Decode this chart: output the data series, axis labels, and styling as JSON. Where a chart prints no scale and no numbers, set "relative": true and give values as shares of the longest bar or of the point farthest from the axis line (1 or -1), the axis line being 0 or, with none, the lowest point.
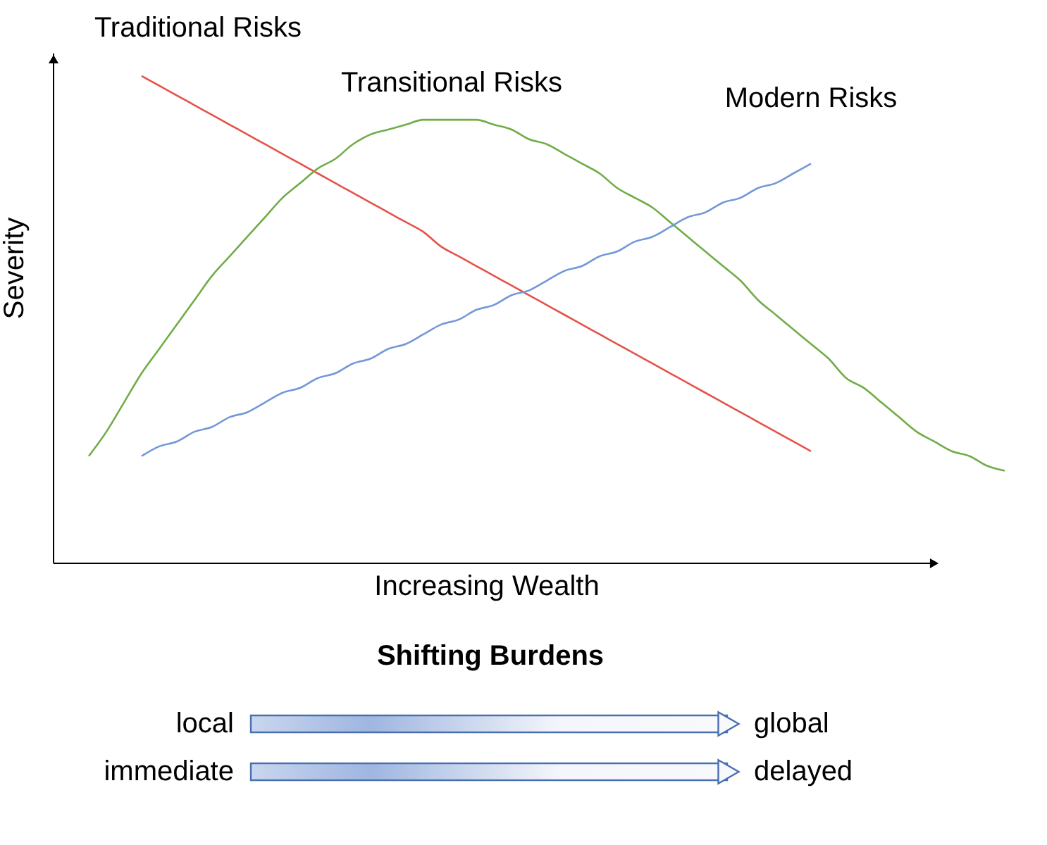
{
  "chart_data": {
    "type": "line",
    "relative": true,
    "xlabel": "Increasing Wealth",
    "ylabel": "Severity",
    "categories": [
      null,
      null,
      null,
      null,
      null,
      null,
      null,
      null,
      null,
      null,
      null,
      null,
      null,
      null,
      null,
      null,
      null,
      null,
      null,
      null,
      null,
      null,
      null,
      null,
      null,
      null,
      null,
      null,
      null,
      null,
      null,
      null,
      null,
      null,
      null,
      null,
      null,
      null,
      null,
      null,
      null,
      null,
      null,
      null,
      null,
      null,
      null,
      null,
      null,
      null,
      null,
      null,
      null
    ],
    "series": [
      {
        "name": "Traditional Risks",
        "color": "#e5524a",
        "values": [
          null,
          null,
          null,
          1.0,
          0.98,
          0.96,
          0.94,
          0.92,
          0.9,
          0.88,
          0.86,
          0.84,
          0.82,
          0.8,
          0.78,
          0.76,
          0.74,
          0.72,
          0.7,
          0.68,
          0.65,
          0.63,
          0.61,
          0.59,
          0.57,
          0.55,
          0.53,
          0.51,
          0.49,
          0.47,
          0.45,
          0.43,
          0.41,
          0.39,
          0.37,
          0.35,
          0.33,
          0.31,
          0.29,
          0.27,
          0.25,
          0.23,
          null,
          null,
          null,
          null,
          null,
          null,
          null,
          null,
          null,
          null,
          null
        ]
      },
      {
        "name": "Transitional Risks",
        "color": "#70ad47",
        "values": [
          0.22,
          0.27,
          0.33,
          0.39,
          0.44,
          0.49,
          0.54,
          0.59,
          0.63,
          0.67,
          0.71,
          0.75,
          0.78,
          0.81,
          0.83,
          0.86,
          0.88,
          0.89,
          0.9,
          0.91,
          0.91,
          0.91,
          0.91,
          0.9,
          0.89,
          0.87,
          0.86,
          0.84,
          0.82,
          0.8,
          0.77,
          0.75,
          0.73,
          0.7,
          0.67,
          0.64,
          0.61,
          0.58,
          0.54,
          0.51,
          0.48,
          0.45,
          0.42,
          0.38,
          0.36,
          0.33,
          0.3,
          0.27,
          0.25,
          0.23,
          0.22,
          0.2,
          0.19
        ]
      },
      {
        "name": "Modern Risks",
        "color": "#7398d8",
        "values": [
          null,
          null,
          null,
          0.22,
          0.24,
          0.25,
          0.27,
          0.28,
          0.3,
          0.31,
          0.33,
          0.35,
          0.36,
          0.38,
          0.39,
          0.41,
          0.42,
          0.44,
          0.45,
          0.47,
          0.49,
          0.5,
          0.52,
          0.53,
          0.55,
          0.56,
          0.58,
          0.6,
          0.61,
          0.63,
          0.64,
          0.66,
          0.67,
          0.69,
          0.71,
          0.72,
          0.74,
          0.75,
          0.77,
          0.78,
          0.8,
          0.82,
          null,
          null,
          null,
          null,
          null,
          null,
          null,
          null,
          null,
          null,
          null
        ]
      }
    ],
    "annotations": [
      "Shifting Burdens",
      "local",
      "global",
      "immediate",
      "delayed"
    ],
    "legend": false,
    "grid": false,
    "tick_labels": false,
    "marker": "none",
    "line_style": "solid"
  }
}
